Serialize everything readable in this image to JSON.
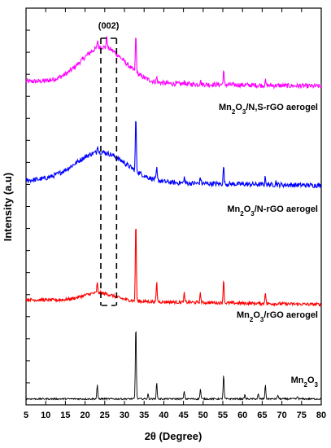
{
  "chart_data": {
    "type": "line",
    "xlabel": "2θ (Degree)",
    "ylabel": "Intensity (a.u)",
    "xlim": [
      5,
      80
    ],
    "x_ticks": [
      5,
      10,
      15,
      20,
      25,
      30,
      35,
      40,
      45,
      50,
      55,
      60,
      65,
      70,
      75,
      80
    ],
    "y_ticks_labeled": false,
    "grid": false,
    "annotation": {
      "text": "(002)",
      "range": [
        24,
        28
      ]
    },
    "series": [
      {
        "name": "Mn2O3/N,S-rGO aerogel",
        "label_main": "Mn",
        "label_parts": [
          {
            "t": "Mn",
            "sub": false
          },
          {
            "t": "2",
            "sub": true
          },
          {
            "t": "O",
            "sub": false
          },
          {
            "t": "3",
            "sub": true
          },
          {
            "t": "/N,S-rGO aerogel",
            "sub": false
          }
        ],
        "color": "#ff00ff",
        "baseline": 0.815,
        "broad_hump": {
          "center": 24.5,
          "height": 0.09,
          "width": 5.5
        },
        "peaks": [
          [
            23.2,
            0.02
          ],
          [
            25.5,
            0.03
          ],
          [
            32.9,
            0.095
          ],
          [
            38.2,
            0.012
          ],
          [
            45.2,
            0.008
          ],
          [
            49.3,
            0.01
          ],
          [
            55.2,
            0.035
          ],
          [
            65.8,
            0.012
          ]
        ],
        "noise": 0.006
      },
      {
        "name": "Mn2O3/N-rGO aerogel",
        "label_parts": [
          {
            "t": "Mn",
            "sub": false
          },
          {
            "t": "2",
            "sub": true
          },
          {
            "t": "O",
            "sub": false
          },
          {
            "t": "3",
            "sub": true
          },
          {
            "t": "/N-rGO aerogel",
            "sub": false
          }
        ],
        "color": "#0000ff",
        "baseline": 0.565,
        "broad_hump": {
          "center": 24.0,
          "height": 0.075,
          "width": 6.5
        },
        "peaks": [
          [
            23.2,
            0.02
          ],
          [
            32.9,
            0.14
          ],
          [
            38.2,
            0.03
          ],
          [
            45.2,
            0.015
          ],
          [
            49.3,
            0.016
          ],
          [
            55.2,
            0.045
          ],
          [
            65.8,
            0.02
          ],
          [
            68.5,
            0.008
          ]
        ],
        "noise": 0.006
      },
      {
        "name": "Mn2O3/rGO aerogel",
        "label_parts": [
          {
            "t": "Mn",
            "sub": false
          },
          {
            "t": "2",
            "sub": true
          },
          {
            "t": "O",
            "sub": false
          },
          {
            "t": "3",
            "sub": true
          },
          {
            "t": "/rGO aerogel",
            "sub": false
          }
        ],
        "color": "#ff0000",
        "baseline": 0.265,
        "broad_hump": {
          "center": 23.5,
          "height": 0.02,
          "width": 4.0
        },
        "peaks": [
          [
            23.1,
            0.025
          ],
          [
            32.9,
            0.205
          ],
          [
            38.2,
            0.05
          ],
          [
            45.2,
            0.022
          ],
          [
            49.3,
            0.024
          ],
          [
            55.2,
            0.06
          ],
          [
            65.8,
            0.03
          ]
        ],
        "noise": 0.004
      },
      {
        "name": "Mn2O3",
        "label_parts": [
          {
            "t": "Mn",
            "sub": false
          },
          {
            "t": "2",
            "sub": true
          },
          {
            "t": "O",
            "sub": false
          },
          {
            "t": "3",
            "sub": true
          }
        ],
        "color": "#000000",
        "baseline": 0.015,
        "broad_hump": {
          "center": 24.0,
          "height": 0.0,
          "width": 4.0
        },
        "peaks": [
          [
            23.1,
            0.035
          ],
          [
            32.9,
            0.19
          ],
          [
            36.0,
            0.012
          ],
          [
            38.2,
            0.04
          ],
          [
            45.2,
            0.02
          ],
          [
            49.3,
            0.025
          ],
          [
            55.2,
            0.06
          ],
          [
            60.6,
            0.01
          ],
          [
            64.0,
            0.012
          ],
          [
            65.8,
            0.035
          ],
          [
            69.0,
            0.01
          ],
          [
            74.0,
            0.006
          ]
        ],
        "noise": 0.002
      }
    ]
  }
}
